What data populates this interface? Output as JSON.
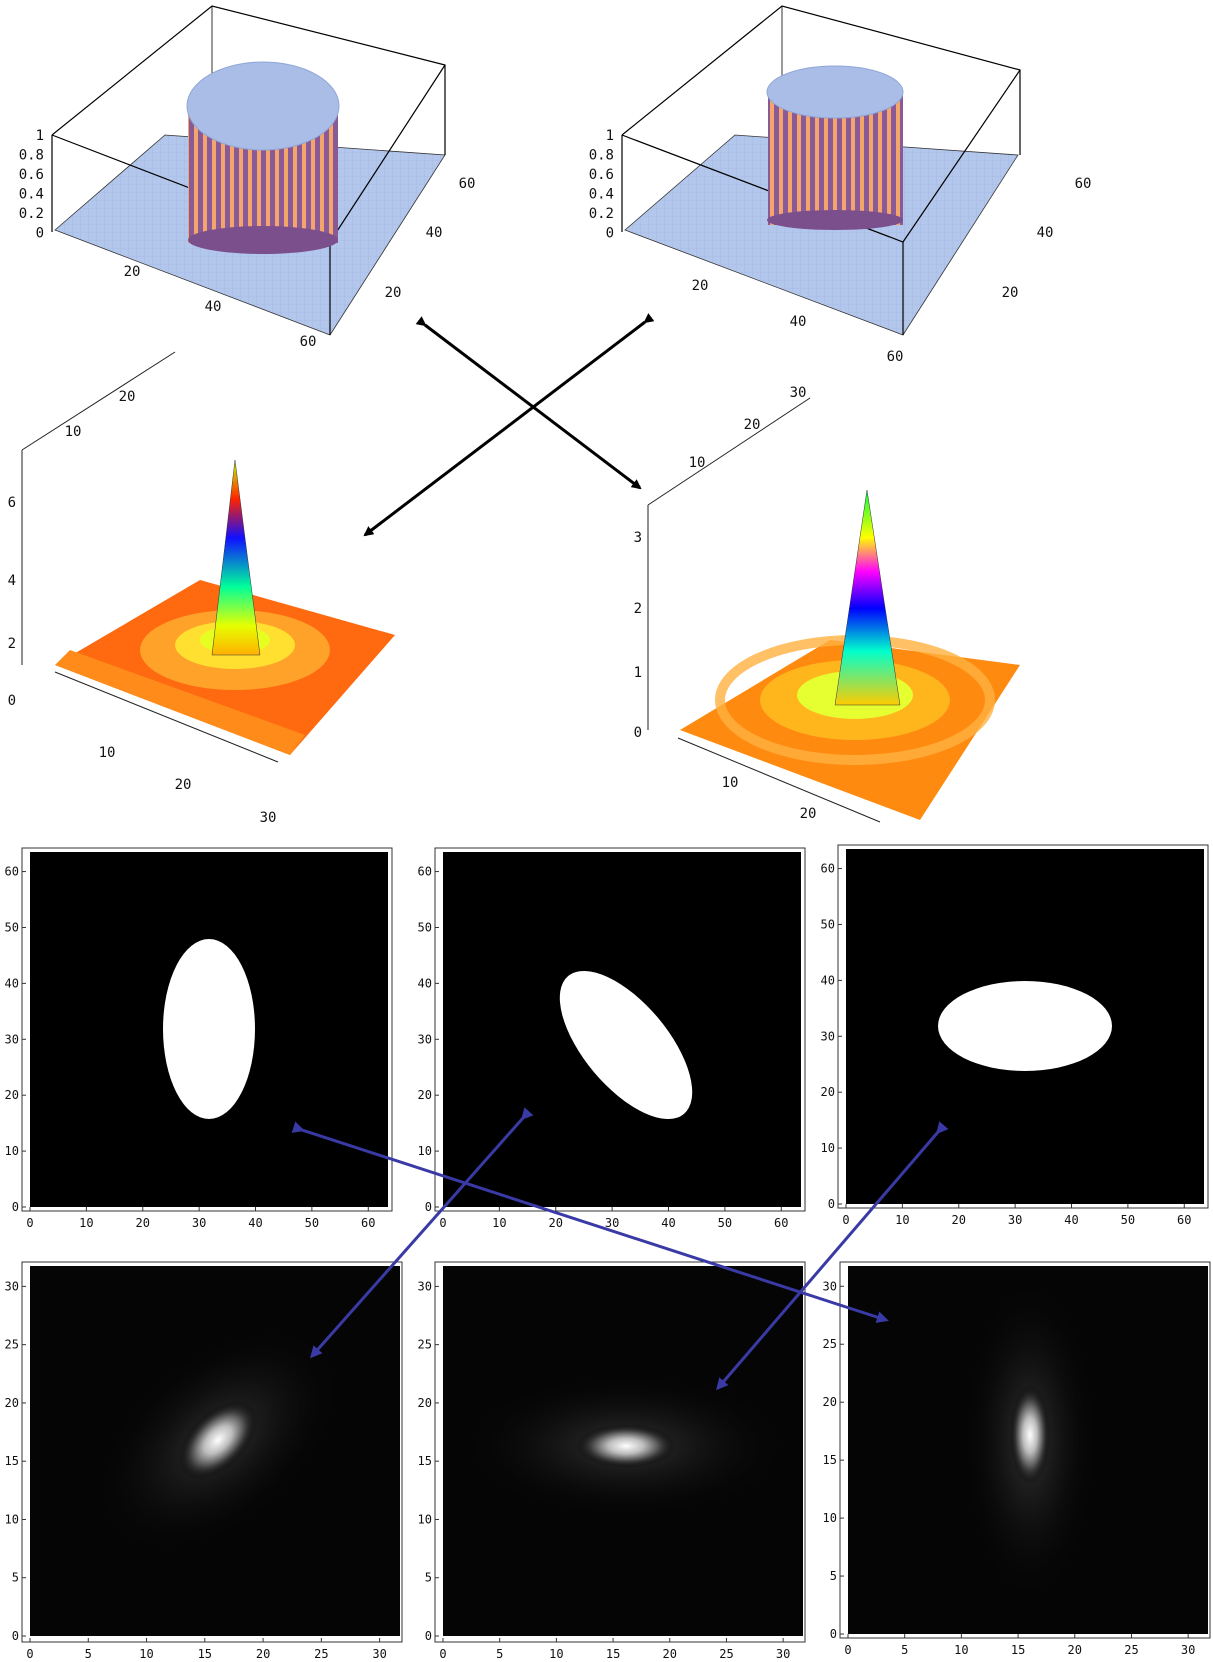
{
  "top_left_plot": {
    "z_ticks": [
      "1",
      "0.8",
      "0.6",
      "0.4",
      "0.2",
      "0"
    ],
    "x_ticks": [
      "20",
      "40",
      "60"
    ],
    "y_ticks": [
      "20",
      "40",
      "60"
    ],
    "shape": "circular aperture (cylinder)"
  },
  "top_right_plot": {
    "z_ticks": [
      "1",
      "0.8",
      "0.6",
      "0.4",
      "0.2",
      "0"
    ],
    "x_ticks": [
      "20",
      "40",
      "60"
    ],
    "y_ticks": [
      "20",
      "40",
      "60"
    ],
    "shape": "elliptical aperture (cylinder)"
  },
  "mid_left_plot": {
    "z_ticks": [
      "6",
      "4",
      "2",
      "0"
    ],
    "x_ticks": [
      "10",
      "20",
      "30"
    ],
    "y_ticks": [
      "10",
      "20"
    ],
    "shape": "diffraction pattern peak"
  },
  "mid_right_plot": {
    "z_ticks": [
      "3",
      "2",
      "1",
      "0"
    ],
    "x_ticks": [
      "10",
      "20"
    ],
    "y_ticks": [
      "10",
      "20",
      "30"
    ],
    "shape": "diffraction pattern peak"
  },
  "aperture_panels": [
    {
      "x_ticks": [
        "0",
        "10",
        "20",
        "30",
        "40",
        "50",
        "60"
      ],
      "y_ticks": [
        "0",
        "10",
        "20",
        "30",
        "40",
        "50",
        "60"
      ],
      "shape": "vertical ellipse"
    },
    {
      "x_ticks": [
        "0",
        "10",
        "20",
        "30",
        "40",
        "50",
        "60"
      ],
      "y_ticks": [
        "0",
        "10",
        "20",
        "30",
        "40",
        "50",
        "60"
      ],
      "shape": "tilted ellipse"
    },
    {
      "x_ticks": [
        "0",
        "10",
        "20",
        "30",
        "40",
        "50",
        "60"
      ],
      "y_ticks": [
        "0",
        "10",
        "20",
        "30",
        "40",
        "50",
        "60"
      ],
      "shape": "horizontal ellipse"
    }
  ],
  "pattern_panels": [
    {
      "x_ticks": [
        "0",
        "5",
        "10",
        "15",
        "20",
        "25",
        "30"
      ],
      "y_ticks": [
        "0",
        "5",
        "10",
        "15",
        "20",
        "25",
        "30"
      ],
      "shape": "tilted spot"
    },
    {
      "x_ticks": [
        "0",
        "5",
        "10",
        "15",
        "20",
        "25",
        "30"
      ],
      "y_ticks": [
        "0",
        "5",
        "10",
        "15",
        "20",
        "25",
        "30"
      ],
      "shape": "horizontal spot"
    },
    {
      "x_ticks": [
        "0",
        "5",
        "10",
        "15",
        "20",
        "25",
        "30"
      ],
      "y_ticks": [
        "0",
        "5",
        "10",
        "15",
        "20",
        "25",
        "30"
      ],
      "shape": "vertical spot"
    }
  ],
  "colors": {
    "background": "#ffffff",
    "black_arrow": "#000000",
    "blue_arrow": "#3a3aa6",
    "surface_blue": "#a9bde6",
    "cylinder_purple": "#7a5a9a",
    "cylinder_orange": "#f4a86a"
  }
}
